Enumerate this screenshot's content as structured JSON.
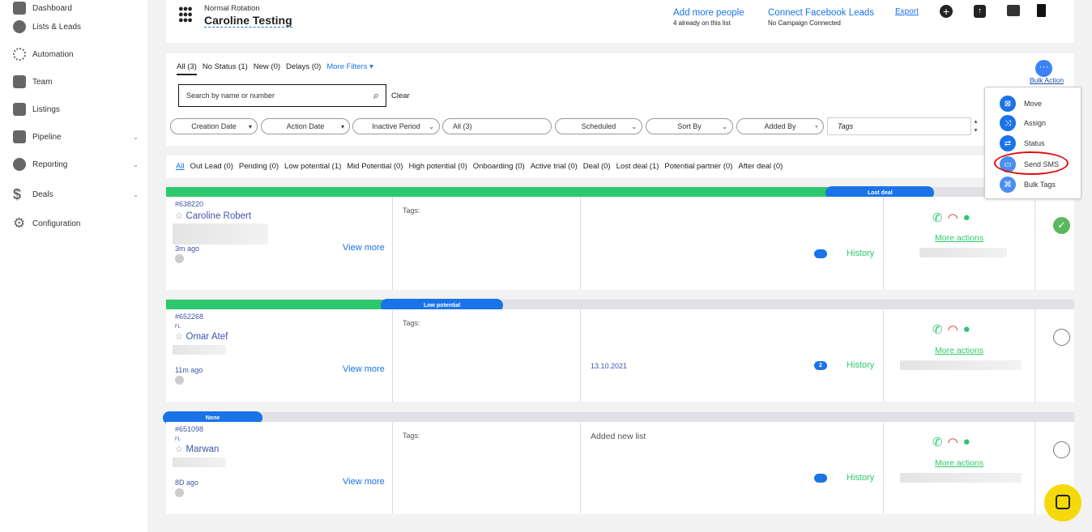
{
  "sidebar": {
    "items": [
      {
        "label": "Dashboard"
      },
      {
        "label": "Lists & Leads"
      },
      {
        "label": "Automation"
      },
      {
        "label": "Team"
      },
      {
        "label": "Listings"
      },
      {
        "label": "Pipeline"
      },
      {
        "label": "Reporting"
      },
      {
        "label": "Deals"
      },
      {
        "label": "Configuration"
      }
    ]
  },
  "header": {
    "subtitle": "Normal Rotation",
    "title": "Caroline Testing",
    "add_people": "Add more people",
    "add_people_sub": "4 already on this list",
    "connect_fb": "Connect Facebook Leads",
    "connect_fb_sub": "No Campaign Connected",
    "export": "Export"
  },
  "filters": {
    "tabs": [
      "All (3)",
      "No Status (1)",
      "New (0)",
      "Delays (0)"
    ],
    "more_filters": "More Filters",
    "search_placeholder": "Search by name or number",
    "clear": "Clear",
    "bulk_action": "Bulk Action",
    "dropdowns": [
      "Creation Date",
      "Action Date",
      "Inactive Period",
      "All (3)",
      "Scheduled",
      "Sort By",
      "Added By"
    ],
    "tags_placeholder": "Tags"
  },
  "bulk_menu": [
    "Move",
    "Assign",
    "Status",
    "Send SMS",
    "Bulk Tags"
  ],
  "status_tabs": [
    "All",
    "Out Lead (0)",
    "Pending (0)",
    "Low potential (1)",
    "Mid Potential (0)",
    "High potential (0)",
    "Onboarding (0)",
    "Active trial (0)",
    "Deal (0)",
    "Lost deal (1)",
    "Potential partner (0)",
    "After deal (0)"
  ],
  "leads": [
    {
      "id": "#638220",
      "source": "",
      "name": "Caroline Robert",
      "ago": "3m ago",
      "status": "Lost deal",
      "progress": 0.73,
      "view_more": "View more",
      "tags": "Tags:",
      "note": "",
      "comment_count": "",
      "history": "History",
      "more_actions": "More actions",
      "checked": true
    },
    {
      "id": "#652268",
      "source": "FL",
      "name": "Omar Atef",
      "ago": "11m ago",
      "status": "Low potential",
      "progress": 0.24,
      "view_more": "View more",
      "tags": "Tags:",
      "note": "13.10.2021",
      "comment_count": "2",
      "history": "History",
      "more_actions": "More actions",
      "checked": false
    },
    {
      "id": "#651098",
      "source": "FL",
      "name": "Marwan",
      "ago": "8D ago",
      "status": "None",
      "progress": 0,
      "view_more": "View more",
      "tags": "Tags:",
      "note": "Added new list",
      "comment_count": "",
      "history": "History",
      "more_actions": "More actions",
      "checked": false
    }
  ],
  "colors": {
    "accent": "#1a73e8",
    "green": "#2dc76d",
    "red": "#e02424",
    "chat_widget": "#f5d90a"
  }
}
